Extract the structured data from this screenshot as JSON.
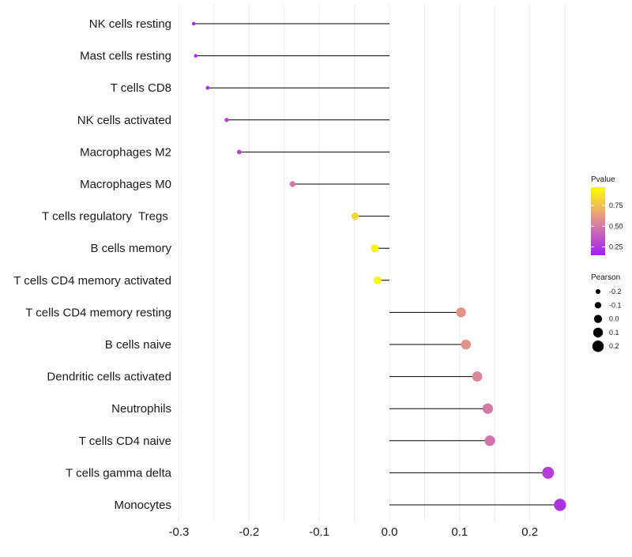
{
  "chart_data": {
    "type": "lollipop",
    "title": "",
    "xlabel": "",
    "ylabel": "",
    "xlim": [
      -0.3,
      0.25
    ],
    "x_ticks": [
      -0.3,
      -0.2,
      -0.1,
      0.0,
      0.1,
      0.2
    ],
    "x_tick_labels": [
      "-0.3",
      "-0.2",
      "-0.1",
      "0.0",
      "0.1",
      "0.2"
    ],
    "grid": true,
    "categories": [
      "NK cells resting",
      "Mast cells resting",
      "T cells CD8",
      "NK cells activated",
      "Macrophages M2",
      "Macrophages M0",
      "T cells regulatory  Tregs ",
      "B cells memory",
      "T cells CD4 memory activated",
      "T cells CD4 memory resting",
      "B cells naive",
      "Dendritic cells activated",
      "Neutrophils",
      "T cells CD4 naive",
      "T cells gamma delta",
      "Monocytes"
    ],
    "values": [
      -0.279,
      -0.276,
      -0.259,
      -0.232,
      -0.214,
      -0.138,
      -0.049,
      -0.021,
      -0.017,
      0.102,
      0.109,
      0.125,
      0.14,
      0.143,
      0.226,
      0.243
    ],
    "pvalues": [
      0.22,
      0.2,
      0.22,
      0.3,
      0.3,
      0.5,
      0.83,
      0.94,
      0.95,
      0.6,
      0.6,
      0.55,
      0.5,
      0.48,
      0.27,
      0.22
    ],
    "color_legend": {
      "title": "Pvalue",
      "breaks": [
        0.75,
        0.5,
        0.25
      ],
      "labels": [
        "0.75",
        "0.50",
        "0.25"
      ],
      "range": [
        0.15,
        0.97
      ],
      "low_color": "#a020f0",
      "mid_color": "#dd8899",
      "high_color": "#ffff00"
    },
    "size_legend": {
      "title": "Pearson",
      "breaks": [
        -0.2,
        -0.1,
        0.0,
        0.1,
        0.2
      ],
      "labels": [
        "-0.2",
        "-0.1",
        "0.0",
        "0.1",
        "0.2"
      ]
    }
  }
}
